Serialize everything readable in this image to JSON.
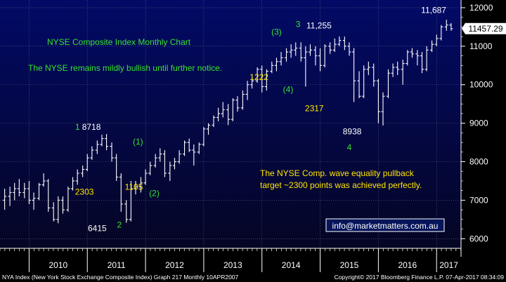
{
  "chart_data": {
    "type": "bar",
    "style": "ohlc",
    "title": "NYSE Composite Index Monthly Chart",
    "subtitle": "The NYSE remains mildly bullish until further notice.",
    "note_lines": [
      "The NYSE Comp. wave equality pullback",
      "target ~2300 points was achieved perfectly."
    ],
    "email": "info@marketmatters.com.au",
    "last_price_label": "11457.29",
    "x_tick_labels": [
      "2010",
      "2011",
      "2012",
      "2013",
      "2014",
      "2015",
      "2016",
      "2017"
    ],
    "y_tick_labels": [
      "6000",
      "7000",
      "8000",
      "9000",
      "10000",
      "11000",
      "12000"
    ],
    "ylim": [
      5750,
      12200
    ],
    "grid": true,
    "footer_left": "NYA Index (New York Stock Exchange Composite Index) Graph 217  Monthly 10APR2007",
    "footer_right": "Copyright© 2017 Bloomberg Finance L.P.          07-Apr-2017 08:34:09",
    "annotations": [
      {
        "text": "1",
        "color": "#37e22f",
        "x": 2010.83,
        "y": 8830
      },
      {
        "text": "8718",
        "color": "#ffffff",
        "x": 2011.07,
        "y": 8830
      },
      {
        "text": "2303",
        "color": "#ffe500",
        "x": 2010.95,
        "y": 7140
      },
      {
        "text": "6415",
        "color": "#ffffff",
        "x": 2011.17,
        "y": 6200
      },
      {
        "text": "2",
        "color": "#37e22f",
        "x": 2011.55,
        "y": 6290
      },
      {
        "text": "(1)",
        "color": "#37e22f",
        "x": 2011.87,
        "y": 8450
      },
      {
        "text": "1105",
        "color": "#ffe500",
        "x": 2011.8,
        "y": 7270
      },
      {
        "text": "(2)",
        "color": "#37e22f",
        "x": 2012.15,
        "y": 7110
      },
      {
        "text": "1222",
        "color": "#ffe500",
        "x": 2013.95,
        "y": 10120
      },
      {
        "text": "(3)",
        "color": "#37e22f",
        "x": 2014.25,
        "y": 11300
      },
      {
        "text": "(4)",
        "color": "#37e22f",
        "x": 2014.45,
        "y": 9800
      },
      {
        "text": "3",
        "color": "#37e22f",
        "x": 2014.62,
        "y": 11500
      },
      {
        "text": "11,255",
        "color": "#ffffff",
        "x": 2014.98,
        "y": 11460
      },
      {
        "text": "2317",
        "color": "#ffe500",
        "x": 2014.9,
        "y": 9310
      },
      {
        "text": "8938",
        "color": "#ffffff",
        "x": 2015.55,
        "y": 8710
      },
      {
        "text": "4",
        "color": "#37e22f",
        "x": 2015.5,
        "y": 8300
      },
      {
        "text": "11,687",
        "color": "#ffffff",
        "x": 2016.95,
        "y": 11860
      }
    ],
    "series": [
      {
        "values": [
          [
            2009.58,
            7000,
            7300,
            6750,
            7100
          ],
          [
            2009.67,
            7100,
            7350,
            6850,
            7200
          ],
          [
            2009.75,
            7200,
            7450,
            7000,
            7300
          ],
          [
            2009.83,
            7300,
            7550,
            7100,
            7200
          ],
          [
            2009.92,
            7200,
            7450,
            7050,
            7300
          ],
          [
            2010.0,
            7300,
            7500,
            6900,
            7000
          ],
          [
            2010.08,
            7000,
            7200,
            6750,
            7050
          ],
          [
            2010.17,
            7050,
            7450,
            7000,
            7400
          ],
          [
            2010.25,
            7400,
            7700,
            7350,
            7500
          ],
          [
            2010.33,
            7500,
            7550,
            6700,
            6800
          ],
          [
            2010.42,
            6800,
            6950,
            6450,
            6500
          ],
          [
            2010.5,
            6500,
            7100,
            6400,
            7000
          ],
          [
            2010.58,
            7000,
            7100,
            6650,
            6750
          ],
          [
            2010.67,
            6750,
            7350,
            6700,
            7300
          ],
          [
            2010.75,
            7300,
            7600,
            7250,
            7500
          ],
          [
            2010.83,
            7500,
            7800,
            7400,
            7700
          ],
          [
            2010.92,
            7700,
            7900,
            7600,
            7800
          ],
          [
            2011.0,
            7800,
            8200,
            7750,
            8100
          ],
          [
            2011.08,
            8100,
            8400,
            8050,
            8300
          ],
          [
            2011.17,
            8300,
            8550,
            8200,
            8450
          ],
          [
            2011.25,
            8450,
            8700,
            8400,
            8600
          ],
          [
            2011.33,
            8600,
            8718,
            8300,
            8400
          ],
          [
            2011.42,
            8400,
            8500,
            8000,
            8100
          ],
          [
            2011.5,
            8100,
            8200,
            7500,
            7600
          ],
          [
            2011.58,
            7600,
            7700,
            6700,
            6900
          ],
          [
            2011.67,
            6900,
            7000,
            6415,
            6500
          ],
          [
            2011.75,
            6500,
            7500,
            6450,
            7300
          ],
          [
            2011.83,
            7300,
            7500,
            7150,
            7350
          ],
          [
            2011.92,
            7350,
            7600,
            7200,
            7450
          ],
          [
            2012.0,
            7450,
            7800,
            7400,
            7700
          ],
          [
            2012.08,
            7700,
            8000,
            7650,
            7900
          ],
          [
            2012.17,
            7900,
            8200,
            7850,
            8100
          ],
          [
            2012.25,
            8100,
            8350,
            8000,
            8200
          ],
          [
            2012.33,
            8200,
            8300,
            7600,
            7700
          ],
          [
            2012.42,
            7700,
            8000,
            7500,
            7900
          ],
          [
            2012.5,
            7900,
            8100,
            7800,
            8000
          ],
          [
            2012.58,
            8000,
            8300,
            7950,
            8200
          ],
          [
            2012.67,
            8200,
            8550,
            8150,
            8500
          ],
          [
            2012.75,
            8500,
            8600,
            8250,
            8300
          ],
          [
            2012.83,
            8300,
            8450,
            7900,
            8250
          ],
          [
            2012.92,
            8250,
            8500,
            8200,
            8450
          ],
          [
            2013.0,
            8450,
            8900,
            8400,
            8850
          ],
          [
            2013.08,
            8850,
            9000,
            8700,
            8950
          ],
          [
            2013.17,
            8950,
            9200,
            8900,
            9150
          ],
          [
            2013.25,
            9150,
            9400,
            9050,
            9250
          ],
          [
            2013.33,
            9250,
            9550,
            9150,
            9350
          ],
          [
            2013.42,
            9350,
            9500,
            8950,
            9100
          ],
          [
            2013.5,
            9100,
            9650,
            9050,
            9600
          ],
          [
            2013.58,
            9600,
            9700,
            9300,
            9400
          ],
          [
            2013.67,
            9400,
            9850,
            9350,
            9750
          ],
          [
            2013.75,
            9750,
            10100,
            9600,
            10000
          ],
          [
            2013.83,
            10000,
            10200,
            9900,
            10100
          ],
          [
            2013.92,
            10100,
            10450,
            10050,
            10400
          ],
          [
            2014.0,
            10400,
            10500,
            9800,
            9950
          ],
          [
            2014.08,
            9950,
            10400,
            9850,
            10350
          ],
          [
            2014.17,
            10350,
            10600,
            10300,
            10500
          ],
          [
            2014.25,
            10500,
            10700,
            10350,
            10600
          ],
          [
            2014.33,
            10600,
            10850,
            10500,
            10700
          ],
          [
            2014.42,
            10700,
            10950,
            10600,
            10850
          ],
          [
            2014.5,
            10850,
            11050,
            10700,
            10900
          ],
          [
            2014.58,
            10900,
            11100,
            10750,
            10950
          ],
          [
            2014.67,
            10950,
            11100,
            10600,
            10700
          ],
          [
            2014.75,
            10700,
            11000,
            9950,
            10850
          ],
          [
            2014.83,
            10850,
            11050,
            10750,
            10900
          ],
          [
            2014.92,
            10900,
            11000,
            10500,
            10750
          ],
          [
            2015.0,
            10750,
            10950,
            10350,
            10500
          ],
          [
            2015.08,
            10500,
            11050,
            10450,
            11000
          ],
          [
            2015.17,
            11000,
            11100,
            10800,
            10900
          ],
          [
            2015.25,
            10900,
            11200,
            10850,
            11050
          ],
          [
            2015.33,
            11050,
            11255,
            11000,
            11150
          ],
          [
            2015.42,
            11150,
            11250,
            10900,
            11000
          ],
          [
            2015.5,
            11000,
            11100,
            10750,
            10850
          ],
          [
            2015.58,
            10850,
            10950,
            9550,
            10100
          ],
          [
            2015.67,
            10100,
            10350,
            9650,
            9700
          ],
          [
            2015.75,
            9700,
            10500,
            9650,
            10400
          ],
          [
            2015.83,
            10400,
            10600,
            10250,
            10450
          ],
          [
            2015.92,
            10450,
            10550,
            9950,
            10100
          ],
          [
            2016.0,
            10100,
            10150,
            9000,
            9300
          ],
          [
            2016.08,
            9300,
            9800,
            8938,
            9700
          ],
          [
            2016.17,
            9700,
            10400,
            9650,
            10300
          ],
          [
            2016.25,
            10300,
            10550,
            10200,
            10450
          ],
          [
            2016.33,
            10450,
            10600,
            10250,
            10400
          ],
          [
            2016.42,
            10400,
            10650,
            10000,
            10550
          ],
          [
            2016.5,
            10550,
            10900,
            10500,
            10850
          ],
          [
            2016.58,
            10850,
            10950,
            10700,
            10800
          ],
          [
            2016.67,
            10800,
            10900,
            10500,
            10750
          ],
          [
            2016.75,
            10750,
            10850,
            10300,
            10400
          ],
          [
            2016.83,
            10400,
            11000,
            10350,
            10900
          ],
          [
            2016.92,
            10900,
            11150,
            10850,
            11050
          ],
          [
            2017.0,
            11050,
            11300,
            11000,
            11200
          ],
          [
            2017.08,
            11200,
            11550,
            11150,
            11500
          ],
          [
            2017.17,
            11500,
            11687,
            11400,
            11550
          ],
          [
            2017.25,
            11550,
            11600,
            11400,
            11457
          ]
        ]
      }
    ]
  }
}
